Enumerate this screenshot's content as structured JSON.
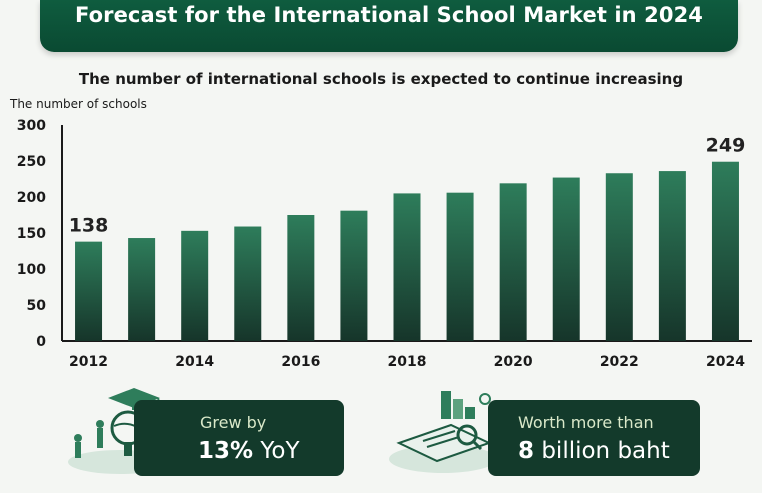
{
  "banner": {
    "title": "Forecast for the International School Market in 2024"
  },
  "subtitle": "The number of international schools is expected to continue increasing",
  "chart_data": {
    "type": "bar",
    "categories": [
      "2012",
      "2013",
      "2014",
      "2015",
      "2016",
      "2017",
      "2018",
      "2019",
      "2020",
      "2021",
      "2022",
      "2023",
      "2024"
    ],
    "x_tick_labels": [
      "2012",
      "2014",
      "2016",
      "2018",
      "2020",
      "2022",
      "2024"
    ],
    "values": [
      138,
      143,
      153,
      159,
      175,
      181,
      205,
      206,
      219,
      227,
      233,
      236,
      249
    ],
    "data_labels": [
      {
        "category": "2012",
        "label": "138"
      },
      {
        "category": "2024",
        "label": "249"
      }
    ],
    "ylabel": "The number of schools",
    "ylim": [
      0,
      300
    ],
    "yticks": [
      0,
      50,
      100,
      150,
      200,
      250,
      300
    ],
    "grid": false,
    "colors": {
      "bar_top": "#2e7d5b",
      "bar_bottom": "#16352a"
    }
  },
  "callouts": [
    {
      "line1": "Grew by",
      "line2_bold": "13%",
      "line2_rest": " YoY"
    },
    {
      "line1": "Worth more than",
      "line2_bold": "8",
      "line2_rest": " billion baht"
    }
  ],
  "illustrations": [
    {
      "icon": "graduation-cap-globe-people-icon"
    },
    {
      "icon": "magnifier-document-chart-icon"
    }
  ],
  "colors": {
    "brand": "#0f5c3f",
    "callout_bg": "#133a2b",
    "callout_text": "#d9e8c9"
  }
}
